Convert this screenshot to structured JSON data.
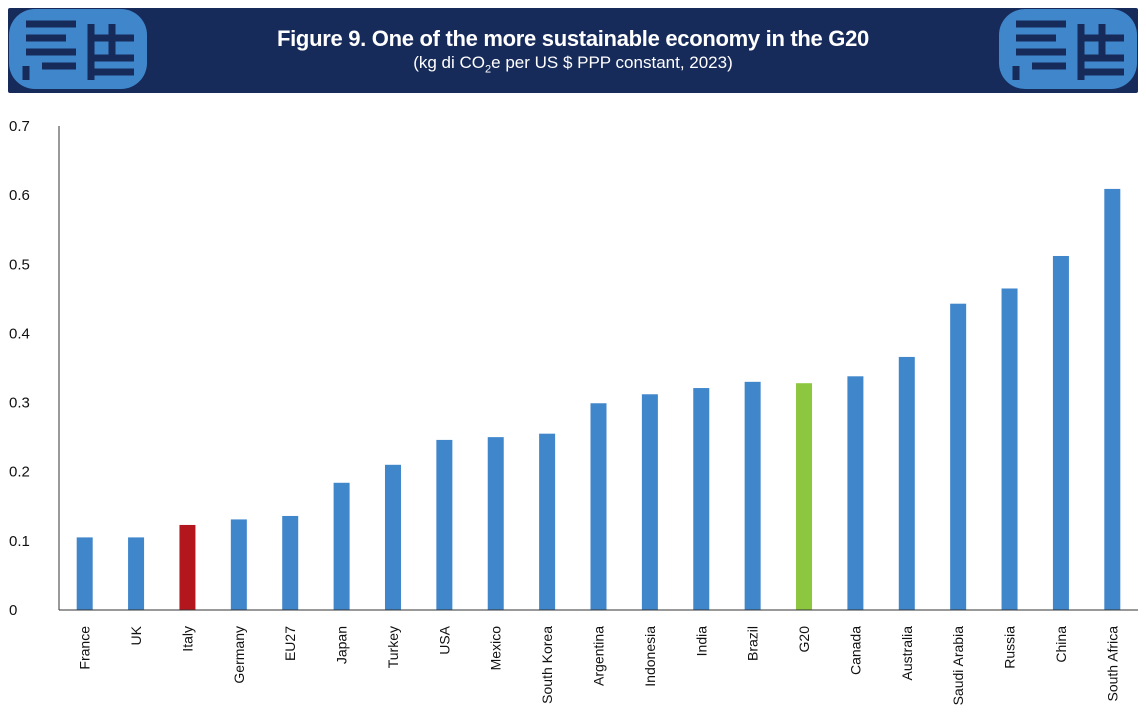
{
  "header": {
    "title": "Figure 9. One of the more sustainable economy in the G20",
    "subtitle_prefix": "(kg di CO",
    "subtitle_sub": "2",
    "subtitle_suffix": "e per US $ PPP constant, 2023)"
  },
  "colors": {
    "banner": "#172b5b",
    "bar_default": "#3f86cb",
    "bar_italy": "#b3161c",
    "bar_g20": "#8dc63f",
    "logo": "#3f86cb"
  },
  "icons": {
    "left_logo": "logo-icon",
    "right_logo": "logo-icon"
  },
  "chart_data": {
    "type": "bar",
    "title": "Figure 9. One of the more sustainable economy in the G20",
    "xlabel": "",
    "ylabel": "",
    "ylim": [
      0,
      0.7
    ],
    "yticks": [
      0,
      0.1,
      0.2,
      0.3,
      0.4,
      0.5,
      0.6,
      0.7
    ],
    "ytick_labels": [
      "0",
      "0.1",
      "0.2",
      "0.3",
      "0.4",
      "0.5",
      "0.6",
      "0.7"
    ],
    "grid": false,
    "categories": [
      "France",
      "UK",
      "Italy",
      "Germany",
      "EU27",
      "Japan",
      "Turkey",
      "USA",
      "Mexico",
      "South Korea",
      "Argentina",
      "Indonesia",
      "India",
      "Brazil",
      "G20",
      "Canada",
      "Australia",
      "Saudi Arabia",
      "Russia",
      "China",
      "South Africa"
    ],
    "values": [
      0.105,
      0.105,
      0.123,
      0.131,
      0.136,
      0.184,
      0.21,
      0.246,
      0.25,
      0.255,
      0.299,
      0.312,
      0.321,
      0.33,
      0.328,
      0.338,
      0.366,
      0.443,
      0.465,
      0.512,
      0.609
    ],
    "highlight": {
      "Italy": "#b3161c",
      "G20": "#8dc63f"
    }
  }
}
